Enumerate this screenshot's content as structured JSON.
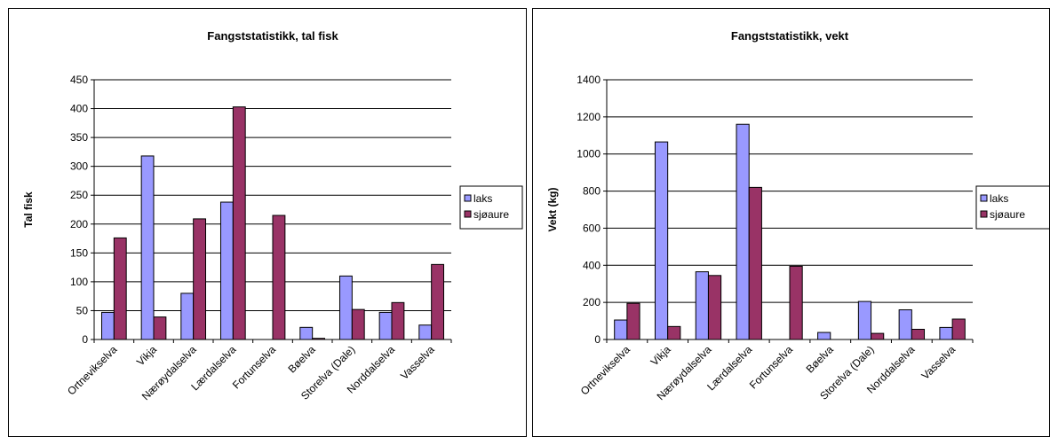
{
  "chart_data": [
    {
      "type": "bar",
      "title": "Fangststatistikk, tal fisk",
      "xlabel": "",
      "ylabel": "Tal fisk",
      "ylim": [
        0,
        450
      ],
      "yticks": [
        0,
        50,
        100,
        150,
        200,
        250,
        300,
        350,
        400,
        450
      ],
      "grid": true,
      "legend_position": "right",
      "categories": [
        "Ortnevikselva",
        "Vikja",
        "Nærøydalselva",
        "Lærdalselva",
        "Fortunselva",
        "Bøelva",
        "Storelva (Dale)",
        "Norddalselva",
        "Vasselva"
      ],
      "series": [
        {
          "name": "laks",
          "color": "#9999ff",
          "values": [
            47,
            318,
            80,
            238,
            0,
            21,
            110,
            47,
            25
          ]
        },
        {
          "name": "sjøaure",
          "color": "#993366",
          "values": [
            176,
            39,
            209,
            403,
            215,
            2,
            52,
            64,
            130
          ]
        }
      ]
    },
    {
      "type": "bar",
      "title": "Fangststatistikk, vekt",
      "xlabel": "",
      "ylabel": "Vekt (kg)",
      "ylim": [
        0,
        1400
      ],
      "yticks": [
        0,
        200,
        400,
        600,
        800,
        1000,
        1200,
        1400
      ],
      "grid": true,
      "legend_position": "right",
      "categories": [
        "Ortnevikselva",
        "Vikja",
        "Nærøydalselva",
        "Lærdalselva",
        "Fortunselva",
        "Bøelva",
        "Storelva (Dale)",
        "Norddalselva",
        "Vasselva"
      ],
      "series": [
        {
          "name": "laks",
          "color": "#9999ff",
          "values": [
            105,
            1065,
            365,
            1160,
            0,
            38,
            205,
            160,
            65
          ]
        },
        {
          "name": "sjøaure",
          "color": "#993366",
          "values": [
            195,
            70,
            345,
            820,
            395,
            0,
            33,
            55,
            110
          ]
        }
      ]
    }
  ]
}
